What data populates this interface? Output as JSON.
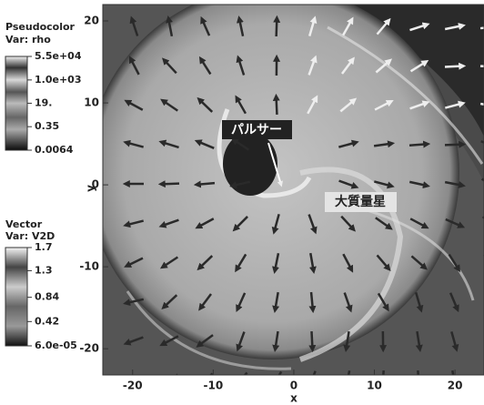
{
  "chart_data": {
    "type": "pseudocolor",
    "x_label": "x",
    "y_label": "y",
    "xlim": [
      -23.7,
      23.6
    ],
    "ylim": [
      -23.2,
      22
    ],
    "xticks": [
      -20,
      -10,
      0,
      10,
      20
    ],
    "yticks": [
      -20,
      -10,
      0,
      10,
      20
    ],
    "annotations": [
      "パルサー",
      "大質量星"
    ],
    "legends": [
      {
        "title": "Pseudocolor",
        "variable": "Var: rho",
        "scale": "log",
        "ticks": [
          {
            "value": 55000,
            "label": "5.5e+04"
          },
          {
            "value": 1000,
            "label": "1.0e+03"
          },
          {
            "value": 19,
            "label": "19."
          },
          0.35,
          0.0064
        ]
      },
      {
        "title": "Vector",
        "variable": "Var: V2D",
        "scale": "linear",
        "ticks": [
          1.7,
          1.3,
          0.84,
          0.42,
          {
            "value": 6e-05,
            "label": "6.0e-05"
          }
        ]
      }
    ]
  }
}
